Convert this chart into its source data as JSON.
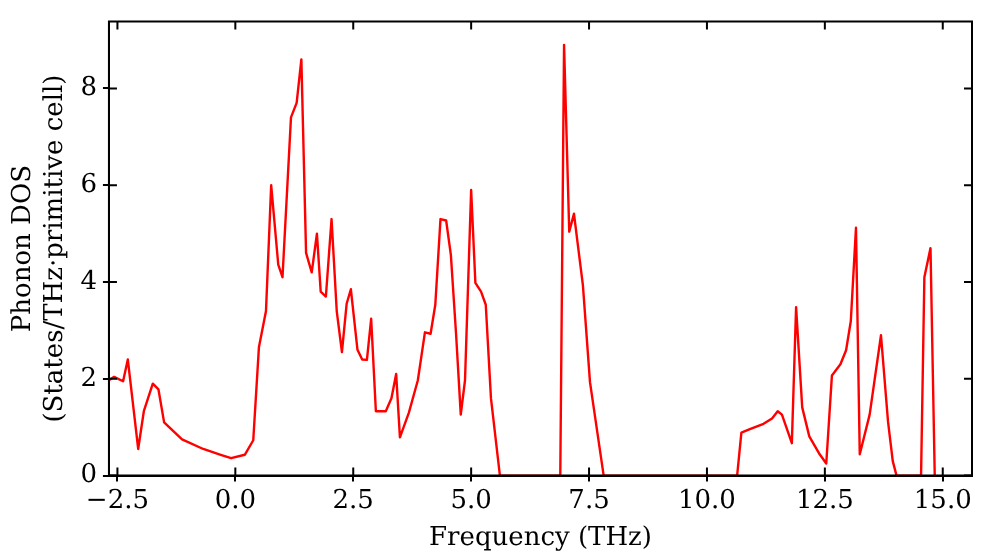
{
  "chart_data": {
    "type": "line",
    "xlabel": "Frequency (THz)",
    "ylabel": "Phonon DOS\n(States/THz·primitive cell)",
    "xlim": [
      -2.68,
      15.62
    ],
    "ylim": [
      0,
      9.38
    ],
    "xticks": [
      {
        "value": -2.5,
        "label": "−2.5"
      },
      {
        "value": 0,
        "label": "0.0"
      },
      {
        "value": 2.5,
        "label": "2.5"
      },
      {
        "value": 5,
        "label": "5.0"
      },
      {
        "value": 7.5,
        "label": "7.5"
      },
      {
        "value": 10,
        "label": "10.0"
      },
      {
        "value": 12.5,
        "label": "12.5"
      },
      {
        "value": 15,
        "label": "15.0"
      }
    ],
    "yticks": [
      0,
      2,
      4,
      6,
      8
    ],
    "grid": false,
    "legend": false,
    "marker": "none",
    "line_style": "solid",
    "series": [
      {
        "color": "#ff0000",
        "x": [
          -2.68,
          -2.57,
          -2.38,
          -2.28,
          -2.06,
          -1.94,
          -1.75,
          -1.63,
          -1.51,
          -1.13,
          -0.68,
          -0.31,
          -0.09,
          0.2,
          0.38,
          0.5,
          0.65,
          0.76,
          0.91,
          1.0,
          1.18,
          1.3,
          1.4,
          1.5,
          1.62,
          1.73,
          1.81,
          1.92,
          2.04,
          2.15,
          2.26,
          2.36,
          2.45,
          2.59,
          2.69,
          2.79,
          2.88,
          2.98,
          3.19,
          3.31,
          3.41,
          3.49,
          3.68,
          3.87,
          4.02,
          4.14,
          4.24,
          4.35,
          4.47,
          4.57,
          4.68,
          4.78,
          4.87,
          5.0,
          5.09,
          5.21,
          5.31,
          5.42,
          5.61,
          6.89,
          6.97,
          7.08,
          7.18,
          7.37,
          7.52,
          7.81,
          10.64,
          10.73,
          10.91,
          11.2,
          11.38,
          11.5,
          11.59,
          11.8,
          11.89,
          12.02,
          12.17,
          12.39,
          12.53,
          12.65,
          12.83,
          12.95,
          13.05,
          13.16,
          13.24,
          13.45,
          13.69,
          13.84,
          13.94,
          14.02,
          14.54,
          14.61,
          14.74,
          14.83
        ],
        "values": [
          1.97,
          2.04,
          1.95,
          2.4,
          0.55,
          1.33,
          1.9,
          1.78,
          1.1,
          0.75,
          0.55,
          0.43,
          0.36,
          0.43,
          0.73,
          2.65,
          3.4,
          6.0,
          4.36,
          4.1,
          7.4,
          7.7,
          8.6,
          4.6,
          4.2,
          5.0,
          3.8,
          3.7,
          5.3,
          3.4,
          2.55,
          3.55,
          3.85,
          2.6,
          2.4,
          2.39,
          3.24,
          1.33,
          1.33,
          1.6,
          2.1,
          0.79,
          1.3,
          1.97,
          2.96,
          2.93,
          3.53,
          5.3,
          5.27,
          4.56,
          2.93,
          1.26,
          1.97,
          5.9,
          3.98,
          3.8,
          3.53,
          1.6,
          0,
          0,
          8.9,
          5.04,
          5.41,
          3.93,
          1.93,
          0,
          0,
          0.89,
          0.96,
          1.07,
          1.18,
          1.33,
          1.26,
          0.67,
          3.48,
          1.41,
          0.81,
          0.44,
          0.25,
          2.07,
          2.3,
          2.59,
          3.19,
          5.12,
          0.44,
          1.26,
          2.9,
          1.11,
          0.3,
          0,
          0,
          4.1,
          4.7,
          0
        ]
      }
    ]
  }
}
